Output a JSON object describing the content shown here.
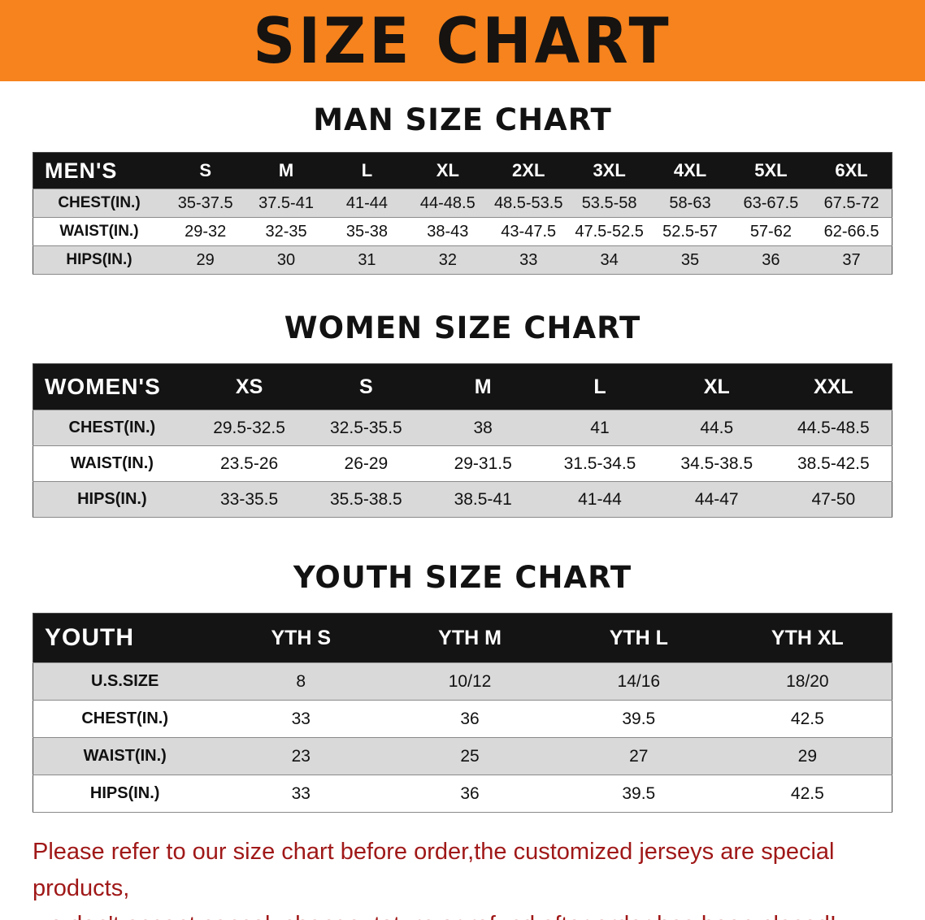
{
  "banner": {
    "title": "SIZE CHART",
    "bg_color": "#f6831d",
    "text_color": "#161311"
  },
  "colors": {
    "table_header_bg": "#141414",
    "table_header_text": "#ffffff",
    "row_stripe": "#d9d9d9",
    "footer_text": "#a01818"
  },
  "chart_data": [
    {
      "type": "table",
      "title": "MAN SIZE CHART",
      "corner_label": "MEN'S",
      "columns": [
        "S",
        "M",
        "L",
        "XL",
        "2XL",
        "3XL",
        "4XL",
        "5XL",
        "6XL"
      ],
      "rows": [
        {
          "label": "CHEST(IN.)",
          "values": [
            "35-37.5",
            "37.5-41",
            "41-44",
            "44-48.5",
            "48.5-53.5",
            "53.5-58",
            "58-63",
            "63-67.5",
            "67.5-72"
          ]
        },
        {
          "label": "WAIST(IN.)",
          "values": [
            "29-32",
            "32-35",
            "35-38",
            "38-43",
            "43-47.5",
            "47.5-52.5",
            "52.5-57",
            "57-62",
            "62-66.5"
          ]
        },
        {
          "label": "HIPS(IN.)",
          "values": [
            "29",
            "30",
            "31",
            "32",
            "33",
            "34",
            "35",
            "36",
            "37"
          ]
        }
      ]
    },
    {
      "type": "table",
      "title": "WOMEN SIZE CHART",
      "corner_label": "WOMEN'S",
      "columns": [
        "XS",
        "S",
        "M",
        "L",
        "XL",
        "XXL"
      ],
      "rows": [
        {
          "label": "CHEST(IN.)",
          "values": [
            "29.5-32.5",
            "32.5-35.5",
            "38",
            "41",
            "44.5",
            "44.5-48.5"
          ]
        },
        {
          "label": "WAIST(IN.)",
          "values": [
            "23.5-26",
            "26-29",
            "29-31.5",
            "31.5-34.5",
            "34.5-38.5",
            "38.5-42.5"
          ]
        },
        {
          "label": "HIPS(IN.)",
          "values": [
            "33-35.5",
            "35.5-38.5",
            "38.5-41",
            "41-44",
            "44-47",
            "47-50"
          ]
        }
      ]
    },
    {
      "type": "table",
      "title": "YOUTH SIZE CHART",
      "corner_label": "YOUTH",
      "columns": [
        "YTH S",
        "YTH M",
        "YTH L",
        "YTH XL"
      ],
      "rows": [
        {
          "label": "U.S.SIZE",
          "values": [
            "8",
            "10/12",
            "14/16",
            "18/20"
          ]
        },
        {
          "label": "CHEST(IN.)",
          "values": [
            "33",
            "36",
            "39.5",
            "42.5"
          ]
        },
        {
          "label": "WAIST(IN.)",
          "values": [
            "23",
            "25",
            "27",
            "29"
          ]
        },
        {
          "label": "HIPS(IN.)",
          "values": [
            "33",
            "36",
            "39.5",
            "42.5"
          ]
        }
      ]
    }
  ],
  "footer": {
    "line1": "Please refer to our size chart before order,the customized jerseys are special products,",
    "line2": "we don't accept cancel, change, teturn or refund after order has been placed!"
  }
}
